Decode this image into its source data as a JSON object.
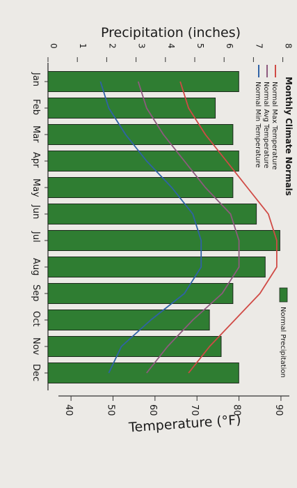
{
  "chart_data": {
    "type": "bar",
    "title": "Monthly Climate Normals",
    "categories": [
      "Jan",
      "Feb",
      "Mar",
      "Apr",
      "May",
      "Jun",
      "Jul",
      "Aug",
      "Sep",
      "Oct",
      "Nov",
      "Dec"
    ],
    "precip_axis": {
      "label": "Precipitation (inches)",
      "ylim": [
        0,
        8
      ],
      "ticks": [
        "0",
        "1",
        "2",
        "3",
        "4",
        "5",
        "6",
        "7",
        "8"
      ]
    },
    "temp_axis": {
      "label": "Temperature (°F)",
      "ylim": [
        37,
        92
      ],
      "ticks": [
        "40",
        "50",
        "60",
        "70",
        "80",
        "90"
      ]
    },
    "series": [
      {
        "name": "Normal Precipitation",
        "kind": "bar",
        "color": "#2f7d32",
        "values": [
          6.5,
          5.7,
          6.3,
          6.5,
          6.3,
          7.1,
          7.9,
          7.4,
          6.3,
          5.5,
          5.9,
          6.5
        ]
      },
      {
        "name": "Normal Max Temperature",
        "kind": "line",
        "color": "#d04a45",
        "values": [
          66,
          68,
          72,
          77,
          82,
          87,
          89,
          89,
          85,
          79,
          73,
          68
        ]
      },
      {
        "name": "Normal Avg Temperature",
        "kind": "line",
        "color": "#8e5a7e",
        "values": [
          56,
          58,
          62,
          67,
          72,
          78,
          80,
          80,
          76,
          69,
          63,
          58
        ]
      },
      {
        "name": "Normal Min Temperature",
        "kind": "line",
        "color": "#2f62a6",
        "values": [
          47,
          49,
          53,
          58,
          64,
          69,
          71,
          71,
          67,
          59,
          52,
          49
        ]
      }
    ],
    "legend_temp": [
      "Normal Max Temperature",
      "Normal Avg Temperature",
      "Normal Min Temperature"
    ],
    "legend_precip": "Normal Precipitation",
    "grid": false
  }
}
